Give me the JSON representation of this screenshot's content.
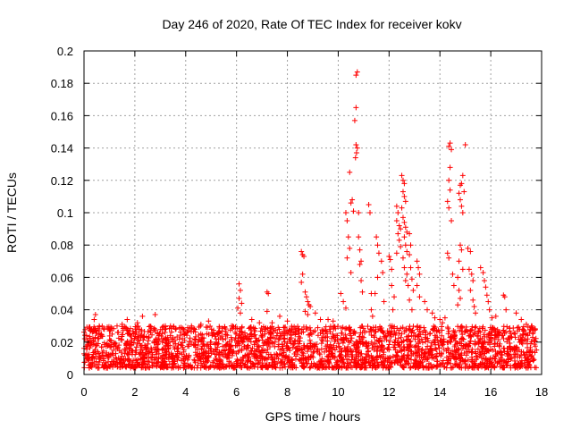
{
  "chart_data": {
    "type": "scatter",
    "title": "Day 246 of 2020, Rate Of TEC Index for receiver kokv",
    "xlabel": "GPS time / hours",
    "ylabel": "ROTI / TECUs",
    "xlim": [
      0,
      18
    ],
    "ylim": [
      0,
      0.2
    ],
    "xticks": [
      0,
      2,
      4,
      6,
      8,
      10,
      12,
      14,
      16,
      18
    ],
    "yticks": [
      0,
      0.02,
      0.04,
      0.06,
      0.08,
      0.1,
      0.12,
      0.14,
      0.16,
      0.18,
      0.2
    ],
    "xtick_labels": [
      "0",
      "2",
      "4",
      "6",
      "8",
      "10",
      "12",
      "14",
      "16",
      "18"
    ],
    "ytick_labels": [
      "0",
      "0.02",
      "0.04",
      "0.06",
      "0.08",
      "0.1",
      "0.12",
      "0.14",
      "0.16",
      "0.18",
      "0.2"
    ],
    "grid": true,
    "marker": "+",
    "color": "#ff0000",
    "background": {
      "description": "dense band of ROTI values between 0.004 and 0.03 over all hours",
      "x_range": [
        0,
        17.8
      ],
      "y_range": [
        0.004,
        0.03
      ]
    },
    "series": [
      {
        "name": "ROTI",
        "points": [
          [
            0.1,
            0.024
          ],
          [
            0.3,
            0.028
          ],
          [
            0.4,
            0.034
          ],
          [
            0.45,
            0.037
          ],
          [
            0.6,
            0.03
          ],
          [
            0.8,
            0.028
          ],
          [
            1.0,
            0.027
          ],
          [
            1.3,
            0.03
          ],
          [
            1.5,
            0.031
          ],
          [
            1.7,
            0.034
          ],
          [
            2.1,
            0.032
          ],
          [
            2.3,
            0.036
          ],
          [
            2.8,
            0.037
          ],
          [
            3.2,
            0.03
          ],
          [
            3.6,
            0.028
          ],
          [
            4.1,
            0.027
          ],
          [
            4.6,
            0.031
          ],
          [
            4.9,
            0.033
          ],
          [
            5.3,
            0.026
          ],
          [
            5.8,
            0.03
          ],
          [
            6.1,
            0.056
          ],
          [
            6.15,
            0.052
          ],
          [
            6.1,
            0.047
          ],
          [
            6.2,
            0.044
          ],
          [
            6.05,
            0.041
          ],
          [
            6.15,
            0.038
          ],
          [
            6.6,
            0.034
          ],
          [
            6.9,
            0.032
          ],
          [
            7.2,
            0.051
          ],
          [
            7.25,
            0.05
          ],
          [
            7.2,
            0.039
          ],
          [
            7.4,
            0.032
          ],
          [
            7.7,
            0.036
          ],
          [
            8.0,
            0.033
          ],
          [
            8.55,
            0.076
          ],
          [
            8.6,
            0.074
          ],
          [
            8.65,
            0.073
          ],
          [
            8.6,
            0.062
          ],
          [
            8.55,
            0.057
          ],
          [
            8.7,
            0.051
          ],
          [
            8.75,
            0.048
          ],
          [
            8.8,
            0.045
          ],
          [
            8.85,
            0.043
          ],
          [
            8.9,
            0.042
          ],
          [
            8.7,
            0.039
          ],
          [
            8.8,
            0.037
          ],
          [
            9.1,
            0.038
          ],
          [
            9.3,
            0.034
          ],
          [
            9.6,
            0.034
          ],
          [
            9.8,
            0.033
          ],
          [
            10.1,
            0.05
          ],
          [
            10.2,
            0.045
          ],
          [
            10.3,
            0.041
          ],
          [
            10.3,
            0.1
          ],
          [
            10.35,
            0.095
          ],
          [
            10.4,
            0.085
          ],
          [
            10.45,
            0.078
          ],
          [
            10.35,
            0.072
          ],
          [
            10.5,
            0.106
          ],
          [
            10.55,
            0.108
          ],
          [
            10.45,
            0.125
          ],
          [
            10.5,
            0.063
          ],
          [
            10.6,
            0.101
          ],
          [
            10.7,
            0.185
          ],
          [
            10.75,
            0.187
          ],
          [
            10.7,
            0.165
          ],
          [
            10.65,
            0.157
          ],
          [
            10.7,
            0.142
          ],
          [
            10.75,
            0.14
          ],
          [
            10.72,
            0.137
          ],
          [
            10.68,
            0.134
          ],
          [
            10.8,
            0.1
          ],
          [
            10.8,
            0.085
          ],
          [
            10.85,
            0.077
          ],
          [
            10.9,
            0.07
          ],
          [
            10.85,
            0.068
          ],
          [
            10.9,
            0.058
          ],
          [
            10.95,
            0.051
          ],
          [
            11.2,
            0.105
          ],
          [
            11.25,
            0.1
          ],
          [
            11.3,
            0.05
          ],
          [
            11.3,
            0.04
          ],
          [
            11.35,
            0.036
          ],
          [
            11.5,
            0.085
          ],
          [
            11.55,
            0.08
          ],
          [
            11.6,
            0.075
          ],
          [
            11.55,
            0.06
          ],
          [
            11.45,
            0.05
          ],
          [
            11.7,
            0.07
          ],
          [
            11.75,
            0.063
          ],
          [
            11.8,
            0.045
          ],
          [
            12.0,
            0.073
          ],
          [
            12.05,
            0.071
          ],
          [
            12.1,
            0.065
          ],
          [
            12.1,
            0.055
          ],
          [
            12.2,
            0.048
          ],
          [
            12.15,
            0.04
          ],
          [
            12.3,
            0.104
          ],
          [
            12.35,
            0.1
          ],
          [
            12.3,
            0.095
          ],
          [
            12.4,
            0.092
          ],
          [
            12.45,
            0.09
          ],
          [
            12.35,
            0.087
          ],
          [
            12.4,
            0.083
          ],
          [
            12.45,
            0.079
          ],
          [
            12.3,
            0.075
          ],
          [
            12.5,
            0.123
          ],
          [
            12.55,
            0.12
          ],
          [
            12.6,
            0.118
          ],
          [
            12.55,
            0.113
          ],
          [
            12.6,
            0.11
          ],
          [
            12.65,
            0.107
          ],
          [
            12.5,
            0.103
          ],
          [
            12.55,
            0.097
          ],
          [
            12.6,
            0.094
          ],
          [
            12.65,
            0.091
          ],
          [
            12.7,
            0.088
          ],
          [
            12.6,
            0.085
          ],
          [
            12.65,
            0.08
          ],
          [
            12.7,
            0.076
          ],
          [
            12.55,
            0.072
          ],
          [
            12.6,
            0.066
          ],
          [
            12.7,
            0.062
          ],
          [
            12.65,
            0.058
          ],
          [
            12.75,
            0.055
          ],
          [
            12.8,
            0.087
          ],
          [
            12.85,
            0.08
          ],
          [
            12.8,
            0.074
          ],
          [
            12.85,
            0.066
          ],
          [
            12.9,
            0.059
          ],
          [
            12.95,
            0.052
          ],
          [
            12.8,
            0.046
          ],
          [
            12.9,
            0.04
          ],
          [
            13.1,
            0.07
          ],
          [
            13.15,
            0.066
          ],
          [
            13.2,
            0.062
          ],
          [
            13.1,
            0.055
          ],
          [
            13.2,
            0.048
          ],
          [
            13.4,
            0.045
          ],
          [
            13.5,
            0.04
          ],
          [
            13.7,
            0.038
          ],
          [
            13.8,
            0.035
          ],
          [
            14.0,
            0.034
          ],
          [
            14.1,
            0.032
          ],
          [
            14.2,
            0.035
          ],
          [
            14.35,
            0.141
          ],
          [
            14.4,
            0.143
          ],
          [
            14.45,
            0.139
          ],
          [
            14.4,
            0.128
          ],
          [
            14.35,
            0.12
          ],
          [
            14.4,
            0.114
          ],
          [
            14.3,
            0.107
          ],
          [
            14.35,
            0.103
          ],
          [
            14.45,
            0.095
          ],
          [
            14.3,
            0.075
          ],
          [
            14.35,
            0.072
          ],
          [
            14.5,
            0.062
          ],
          [
            14.55,
            0.055
          ],
          [
            14.75,
            0.112
          ],
          [
            14.8,
            0.108
          ],
          [
            14.85,
            0.104
          ],
          [
            14.9,
            0.1
          ],
          [
            14.8,
            0.117
          ],
          [
            14.85,
            0.118
          ],
          [
            14.9,
            0.123
          ],
          [
            15.0,
            0.142
          ],
          [
            14.95,
            0.113
          ],
          [
            14.8,
            0.08
          ],
          [
            14.85,
            0.077
          ],
          [
            14.75,
            0.07
          ],
          [
            14.9,
            0.065
          ],
          [
            14.7,
            0.06
          ],
          [
            14.75,
            0.052
          ],
          [
            14.8,
            0.047
          ],
          [
            14.7,
            0.043
          ],
          [
            15.1,
            0.078
          ],
          [
            15.2,
            0.076
          ],
          [
            15.15,
            0.065
          ],
          [
            15.25,
            0.062
          ],
          [
            15.3,
            0.058
          ],
          [
            15.2,
            0.052
          ],
          [
            15.3,
            0.046
          ],
          [
            15.35,
            0.042
          ],
          [
            15.4,
            0.038
          ],
          [
            15.6,
            0.066
          ],
          [
            15.7,
            0.063
          ],
          [
            15.75,
            0.058
          ],
          [
            15.8,
            0.054
          ],
          [
            15.85,
            0.049
          ],
          [
            15.9,
            0.045
          ],
          [
            15.95,
            0.04
          ],
          [
            16.05,
            0.035
          ],
          [
            16.2,
            0.036
          ],
          [
            16.5,
            0.049
          ],
          [
            16.55,
            0.048
          ],
          [
            16.6,
            0.04
          ],
          [
            17.0,
            0.038
          ],
          [
            17.2,
            0.034
          ],
          [
            17.4,
            0.031
          ],
          [
            17.6,
            0.03
          ],
          [
            17.75,
            0.028
          ]
        ]
      }
    ]
  }
}
